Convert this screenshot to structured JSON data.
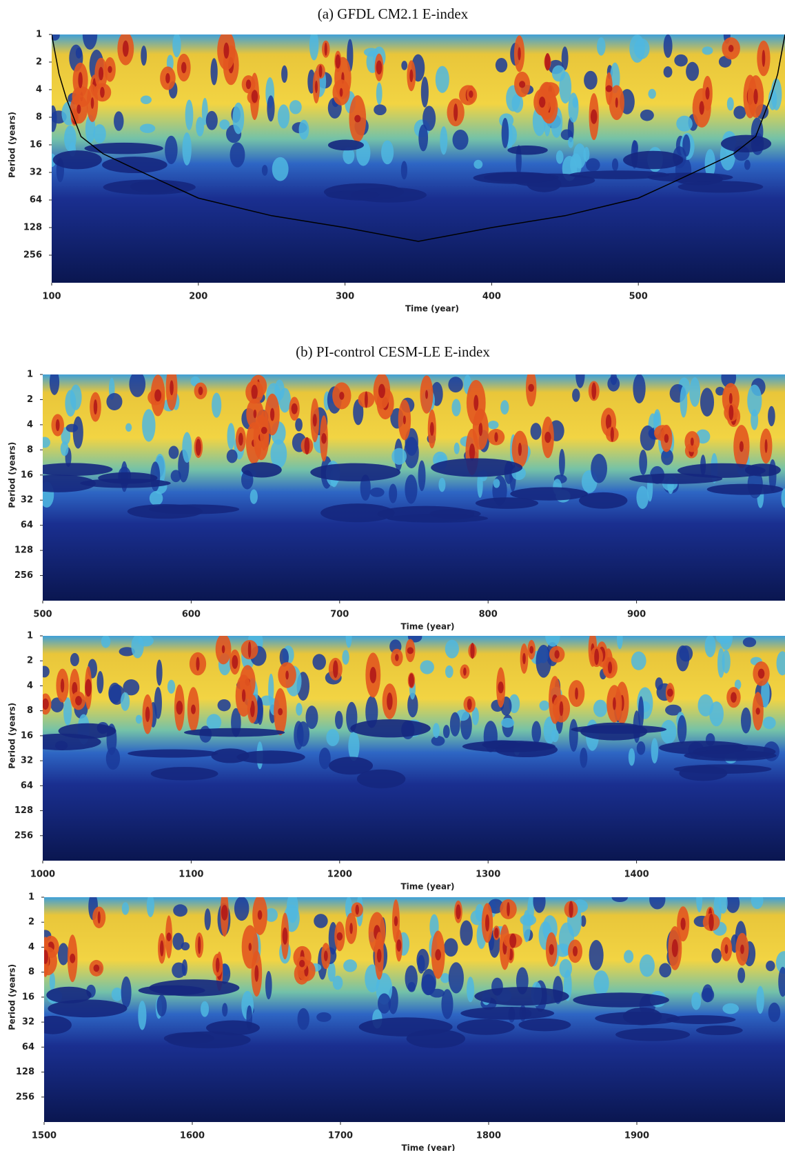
{
  "chart_data": [
    {
      "type": "wavelet",
      "title": "(a) GFDL CM2.1 E-index",
      "x_label": "Time (year)",
      "y_label": "Period (years)",
      "xlim": [
        100,
        600
      ],
      "xticks": [
        100,
        200,
        300,
        400,
        500
      ],
      "ylim": [
        1,
        512
      ],
      "yticks": [
        1,
        2,
        4,
        8,
        16,
        32,
        64,
        128,
        256
      ],
      "y_log_base": 2,
      "y_inverted": true,
      "x": [
        100,
        105,
        110,
        120,
        135,
        150,
        175,
        200,
        250,
        300,
        350,
        400,
        450,
        500,
        525,
        550,
        565,
        580,
        590,
        595,
        600
      ],
      "series": [
        {
          "color": "#000000",
          "values": [
            1,
            2.7,
            5,
            13,
            20,
            26,
            40,
            61,
            95,
            128,
            181,
            128,
            95,
            61,
            40,
            26,
            20,
            13,
            5,
            2.7,
            1
          ]
        }
      ]
    },
    {
      "type": "wavelet",
      "title": "(b) PI-control CESM-LE E-index",
      "x_label": "Time (year)",
      "y_label": "Period (years)",
      "xlim": [
        500,
        1000
      ],
      "xticks": [
        500,
        600,
        700,
        800,
        900
      ],
      "ylim": [
        1,
        512
      ],
      "yticks": [
        1,
        2,
        4,
        8,
        16,
        32,
        64,
        128,
        256
      ],
      "y_log_base": 2,
      "y_inverted": true
    },
    {
      "type": "wavelet",
      "x_label": "Time (year)",
      "y_label": "Period (years)",
      "xlim": [
        1000,
        1500
      ],
      "xticks": [
        1000,
        1100,
        1200,
        1300,
        1400
      ],
      "ylim": [
        1,
        512
      ],
      "yticks": [
        1,
        2,
        4,
        8,
        16,
        32,
        64,
        128,
        256
      ],
      "y_log_base": 2,
      "y_inverted": true
    },
    {
      "type": "wavelet",
      "x_label": "Time (year)",
      "y_label": "Period (years)",
      "xlim": [
        1500,
        2000
      ],
      "xticks": [
        1500,
        1600,
        1700,
        1800,
        1900
      ],
      "ylim": [
        1,
        512
      ],
      "yticks": [
        1,
        2,
        4,
        8,
        16,
        32,
        64,
        128,
        256
      ],
      "y_log_base": 2,
      "y_inverted": true
    }
  ]
}
